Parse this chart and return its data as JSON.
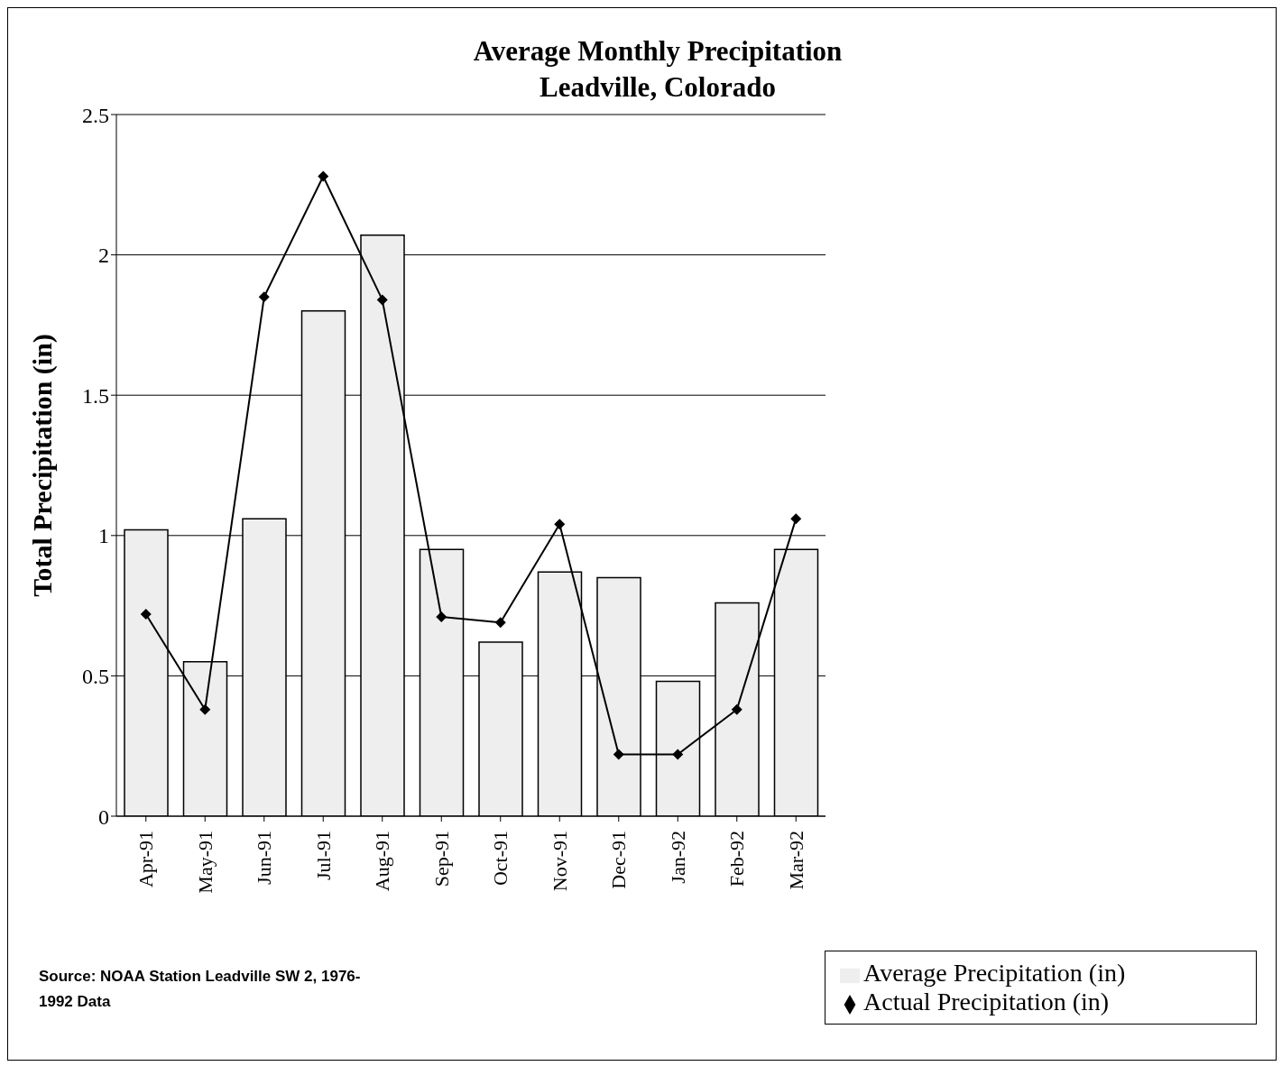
{
  "chart_data": {
    "type": "bar",
    "title": "Average Monthly Precipitation\nLeadville, Colorado",
    "ylabel": "Total Precipitation (in)",
    "categories": [
      "Apr-91",
      "May-91",
      "Jun-91",
      "Jul-91",
      "Aug-91",
      "Sep-91",
      "Oct-91",
      "Nov-91",
      "Dec-91",
      "Jan-92",
      "Feb-92",
      "Mar-92"
    ],
    "series": [
      {
        "name": "Average Precipitation (in)",
        "color": "#eeeeee",
        "values": [
          1.02,
          0.55,
          1.06,
          1.8,
          2.07,
          0.95,
          0.62,
          0.87,
          0.85,
          0.48,
          0.76,
          0.95
        ]
      },
      {
        "name": "Actual Precipitation (in)",
        "type": "line",
        "color": "#000000",
        "marker": "diamond",
        "values": [
          0.72,
          0.38,
          1.85,
          2.28,
          1.84,
          0.71,
          0.69,
          1.04,
          0.22,
          0.22,
          0.38,
          1.06
        ]
      }
    ],
    "ylim": [
      0,
      2.5
    ],
    "yticks": [
      0,
      0.5,
      1,
      1.5,
      2,
      2.5
    ],
    "grid": "y",
    "legend": "bottom right",
    "annotations": [
      "Source:  NOAA Station Leadville SW 2, 1976-\n1992 Data"
    ]
  }
}
